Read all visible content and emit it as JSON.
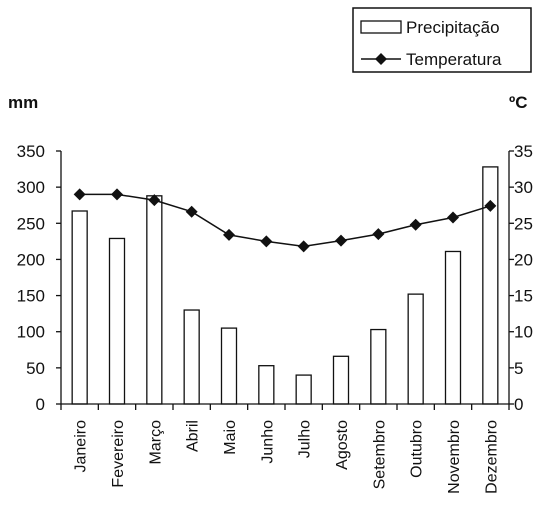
{
  "chart_data": {
    "type": "bar+line",
    "categories": [
      "Janeiro",
      "Fevereiro",
      "Março",
      "Abril",
      "Maio",
      "Junho",
      "Julho",
      "Agosto",
      "Setembro",
      "Outubro",
      "Novembro",
      "Dezembro"
    ],
    "series": [
      {
        "name": "Precipitação",
        "type": "bar",
        "axis": "left",
        "values": [
          267,
          229,
          288,
          130,
          105,
          53,
          40,
          66,
          103,
          152,
          211,
          328
        ]
      },
      {
        "name": "Temperatura",
        "type": "line",
        "axis": "right",
        "marker": "diamond",
        "values": [
          29,
          29,
          28.2,
          26.6,
          23.4,
          22.5,
          21.8,
          22.6,
          23.5,
          24.8,
          25.8,
          27.4
        ]
      }
    ],
    "y_left": {
      "label": "mm",
      "range": [
        0,
        350
      ],
      "ticks": [
        "0",
        "50",
        "100",
        "150",
        "200",
        "250",
        "300",
        "350"
      ]
    },
    "y_right": {
      "label": "ºC",
      "range": [
        0,
        35
      ],
      "ticks": [
        "0",
        "5",
        "10",
        "15",
        "20",
        "25",
        "30",
        "35"
      ]
    },
    "grid": false,
    "legend_placement": "top-right",
    "colors": {
      "bar_fill": "#ffffff",
      "stroke": "#111111"
    }
  }
}
